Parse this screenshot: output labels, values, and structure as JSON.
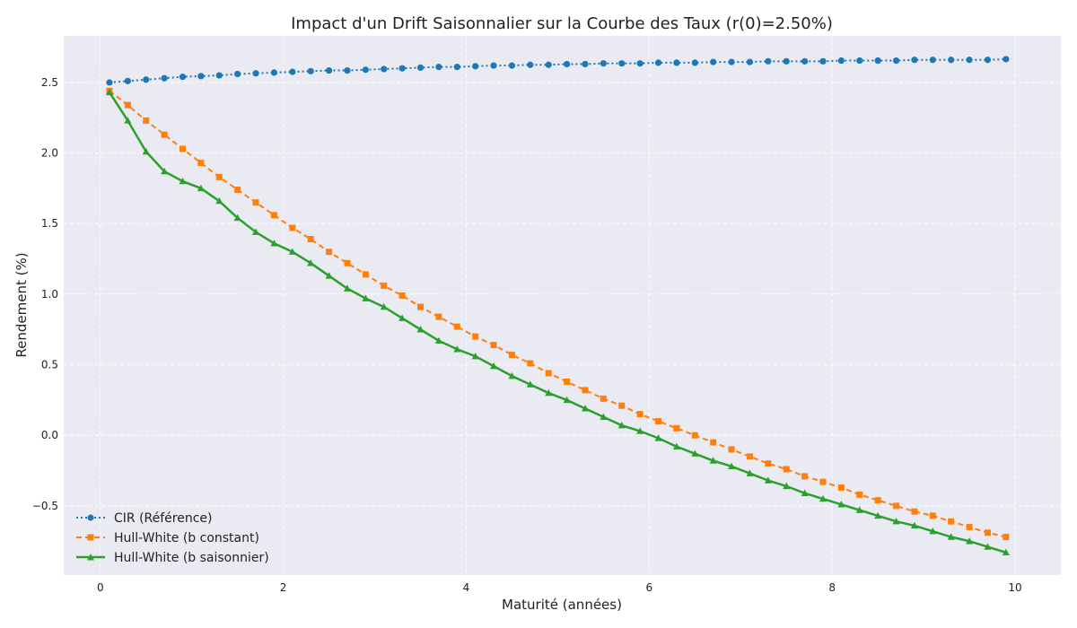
{
  "chart_data": {
    "type": "line",
    "title": "Impact d'un Drift Saisonnalier sur la Courbe des Taux (r(0)=2.50%)",
    "xlabel": "Maturité (années)",
    "ylabel": "Rendement (%)",
    "xlim": [
      -0.4,
      10.5
    ],
    "ylim": [
      -0.99,
      2.83
    ],
    "xticks": [
      0,
      2,
      4,
      6,
      8,
      10
    ],
    "xtick_labels": [
      "0",
      "2",
      "4",
      "6",
      "8",
      "10"
    ],
    "yticks": [
      -0.5,
      0.0,
      0.5,
      1.0,
      1.5,
      2.0,
      2.5
    ],
    "ytick_labels": [
      "−0.5",
      "0.0",
      "0.5",
      "1.0",
      "1.5",
      "2.0",
      "2.5"
    ],
    "grid": true,
    "legend_position": "lower-left",
    "x": [
      0.1,
      0.3,
      0.5,
      0.7,
      0.9,
      1.1,
      1.3,
      1.5,
      1.7,
      1.9,
      2.1,
      2.3,
      2.5,
      2.7,
      2.9,
      3.1,
      3.3,
      3.5,
      3.7,
      3.9,
      4.1,
      4.3,
      4.5,
      4.7,
      4.9,
      5.1,
      5.3,
      5.5,
      5.7,
      5.9,
      6.1,
      6.3,
      6.5,
      6.7,
      6.9,
      7.1,
      7.3,
      7.5,
      7.7,
      7.9,
      8.1,
      8.3,
      8.5,
      8.7,
      8.9,
      9.1,
      9.3,
      9.5,
      9.7,
      9.9
    ],
    "series": [
      {
        "name": "CIR (Référence)",
        "color": "#1f77b4",
        "marker": "circle",
        "dash": "dotted",
        "values": [
          2.5,
          2.51,
          2.52,
          2.53,
          2.54,
          2.545,
          2.55,
          2.56,
          2.565,
          2.57,
          2.575,
          2.58,
          2.585,
          2.585,
          2.59,
          2.595,
          2.6,
          2.605,
          2.61,
          2.61,
          2.615,
          2.62,
          2.62,
          2.625,
          2.625,
          2.63,
          2.63,
          2.635,
          2.635,
          2.635,
          2.64,
          2.64,
          2.64,
          2.645,
          2.645,
          2.645,
          2.65,
          2.65,
          2.65,
          2.65,
          2.655,
          2.655,
          2.655,
          2.655,
          2.66,
          2.66,
          2.66,
          2.66,
          2.66,
          2.665
        ]
      },
      {
        "name": "Hull-White (b constant)",
        "color": "#ff7f0e",
        "marker": "square",
        "dash": "dashed",
        "values": [
          2.44,
          2.34,
          2.23,
          2.13,
          2.03,
          1.93,
          1.83,
          1.74,
          1.65,
          1.56,
          1.47,
          1.39,
          1.3,
          1.22,
          1.14,
          1.06,
          0.99,
          0.91,
          0.84,
          0.77,
          0.7,
          0.64,
          0.57,
          0.51,
          0.44,
          0.38,
          0.32,
          0.26,
          0.21,
          0.15,
          0.1,
          0.05,
          0.0,
          -0.05,
          -0.1,
          -0.15,
          -0.2,
          -0.24,
          -0.29,
          -0.33,
          -0.37,
          -0.42,
          -0.46,
          -0.5,
          -0.54,
          -0.57,
          -0.61,
          -0.65,
          -0.69,
          -0.72
        ]
      },
      {
        "name": "Hull-White (b saisonnier)",
        "color": "#2ca02c",
        "marker": "triangle",
        "dash": "solid",
        "values": [
          2.43,
          2.23,
          2.01,
          1.87,
          1.8,
          1.75,
          1.66,
          1.54,
          1.44,
          1.36,
          1.3,
          1.22,
          1.13,
          1.04,
          0.97,
          0.91,
          0.83,
          0.75,
          0.67,
          0.61,
          0.56,
          0.49,
          0.42,
          0.36,
          0.3,
          0.25,
          0.19,
          0.13,
          0.07,
          0.03,
          -0.02,
          -0.08,
          -0.13,
          -0.18,
          -0.22,
          -0.27,
          -0.32,
          -0.36,
          -0.41,
          -0.45,
          -0.49,
          -0.53,
          -0.57,
          -0.61,
          -0.64,
          -0.68,
          -0.72,
          -0.75,
          -0.79,
          -0.83
        ]
      }
    ]
  },
  "colors": {
    "plot_background": "#eaeaf2",
    "grid": "#ffffff"
  }
}
